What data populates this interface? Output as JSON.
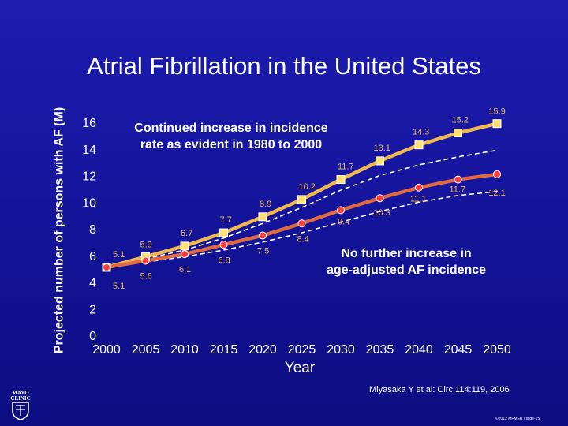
{
  "slide_title": "Atrial Fibrillation in the United States",
  "logo_text": "MAYO CLINIC",
  "citation": "Miyasaka Y et al: Circ 114:119, 2006",
  "copyright": "©2012 MFMER | slide-15",
  "colors": {
    "background": "#1616a0",
    "upper_series": "#f0b850",
    "lower_series": "#e06a40",
    "marker_fill_upper": "#ffe070",
    "marker_fill_lower": "#ff3c3c",
    "dashed_bounds": "#ffffff",
    "text": "#ffffff"
  },
  "chart_data": {
    "type": "line",
    "ylabel": "Projected number of\npersons with AF (M)",
    "xlabel": "Year",
    "x": [
      2000,
      2005,
      2010,
      2015,
      2020,
      2025,
      2030,
      2035,
      2040,
      2045,
      2050
    ],
    "xlim": [
      2000,
      2050
    ],
    "ylim": [
      0,
      16
    ],
    "yticks": [
      0,
      2,
      4,
      6,
      8,
      10,
      12,
      14,
      16
    ],
    "xticks": [
      2000,
      2005,
      2010,
      2015,
      2020,
      2025,
      2030,
      2035,
      2040,
      2045,
      2050
    ],
    "grid": false,
    "legend": "none",
    "annotations": [
      "Continued increase in incidence\nrate as evident in 1980 to 2000",
      "No further increase in\nage-adjusted AF incidence"
    ],
    "series": [
      {
        "values": [
          5.1,
          5.9,
          6.7,
          7.7,
          8.9,
          10.2,
          11.7,
          13.1,
          14.3,
          15.2,
          15.9
        ],
        "labels": [
          "5.1",
          "5.9",
          "6.7",
          "7.7",
          "8.9",
          "10.2",
          "11.7",
          "13.1",
          "14.3",
          "15.2",
          "15.9"
        ],
        "marker": "square"
      },
      {
        "values": [
          5.1,
          5.6,
          6.1,
          6.8,
          7.5,
          8.4,
          9.4,
          10.3,
          11.1,
          11.7,
          12.1
        ],
        "labels": [
          "5.1",
          "5.6",
          "6.1",
          "6.8",
          "7.5",
          "8.4",
          "9.4",
          "10.3",
          "11.1",
          "11.7",
          "12.1"
        ],
        "marker": "circle"
      }
    ],
    "bounds": [
      {
        "style": "dashed",
        "values": [
          5.1,
          5.75,
          6.4,
          7.3,
          8.4,
          9.6,
          10.9,
          12.0,
          12.8,
          13.4,
          13.9
        ]
      },
      {
        "style": "dashed",
        "values": [
          5.1,
          5.5,
          5.9,
          6.4,
          7.0,
          7.7,
          8.5,
          9.3,
          10.0,
          10.5,
          10.8
        ]
      }
    ]
  }
}
